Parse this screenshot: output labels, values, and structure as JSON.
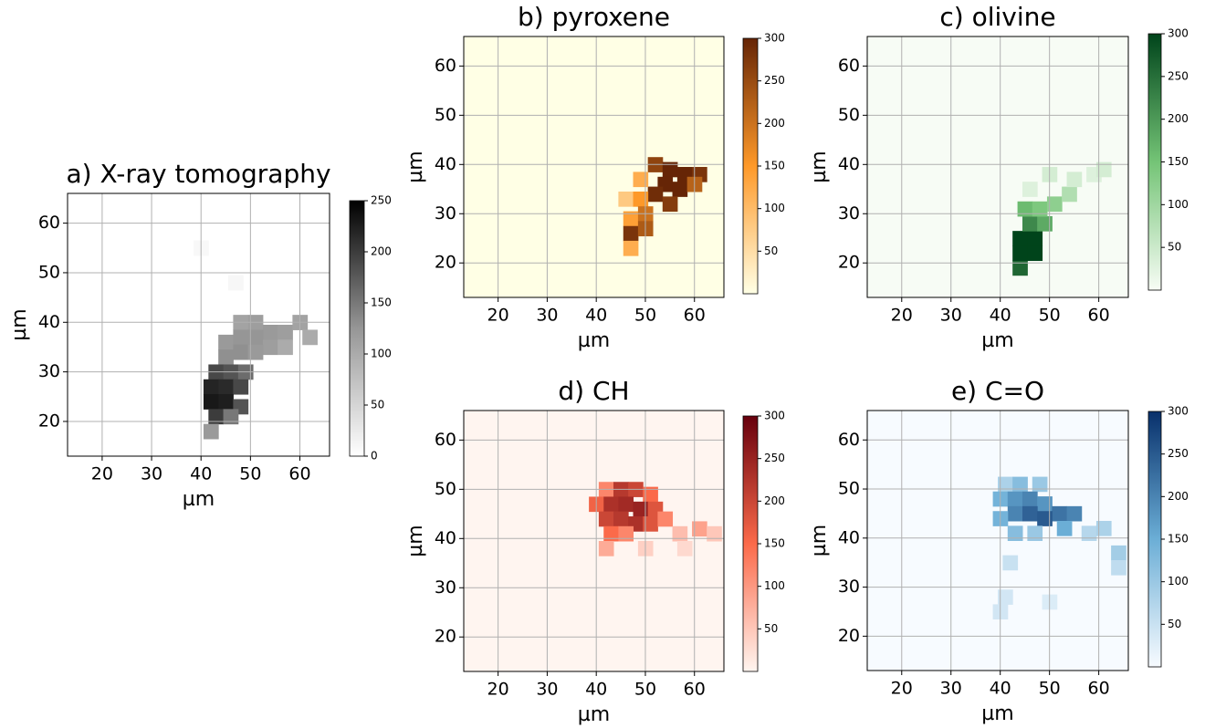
{
  "chart_data": [
    {
      "type": "heatmap",
      "title": "a) X-ray tomography",
      "xlabel": "µm",
      "ylabel": "µm",
      "xlim": [
        13,
        66
      ],
      "ylim": [
        13,
        66
      ],
      "xticks": [
        20,
        30,
        40,
        50,
        60
      ],
      "yticks": [
        20,
        30,
        40,
        50,
        60
      ],
      "grid": true,
      "clim": [
        0,
        250
      ],
      "cticks": [
        0,
        50,
        100,
        150,
        200,
        250
      ],
      "colormap": [
        "#ffffff",
        "#969696",
        "#000000"
      ],
      "x": [
        48,
        51,
        54,
        57,
        60,
        62,
        45,
        48,
        51,
        54,
        57,
        45,
        48,
        51,
        43,
        46,
        49,
        42,
        45,
        48,
        42,
        45,
        48,
        43,
        46,
        42,
        47,
        40
      ],
      "y": [
        40,
        40,
        38,
        38,
        40,
        37,
        36,
        37,
        37,
        35,
        35,
        33,
        34,
        34,
        30,
        30,
        30,
        27,
        27,
        27,
        24,
        24,
        23,
        21,
        21,
        18,
        48,
        55
      ],
      "values": [
        110,
        115,
        120,
        115,
        110,
        100,
        120,
        125,
        125,
        115,
        100,
        130,
        130,
        120,
        190,
        180,
        160,
        220,
        215,
        190,
        230,
        225,
        180,
        200,
        150,
        120,
        10,
        8
      ]
    },
    {
      "type": "heatmap",
      "title": "b) pyroxene",
      "xlabel": "µm",
      "ylabel": "µm",
      "xlim": [
        13,
        66
      ],
      "ylim": [
        13,
        66
      ],
      "xticks": [
        20,
        30,
        40,
        50,
        60
      ],
      "yticks": [
        20,
        30,
        40,
        50,
        60
      ],
      "grid": true,
      "clim": [
        0,
        300
      ],
      "cticks": [
        50,
        100,
        150,
        200,
        250,
        300
      ],
      "colormap": [
        "#ffffe5",
        "#fe9929",
        "#662506"
      ],
      "x": [
        52,
        55,
        58,
        61,
        54,
        57,
        60,
        52,
        55,
        49,
        46,
        49,
        47,
        50,
        47,
        50,
        47
      ],
      "y": [
        40,
        39,
        38,
        38,
        36,
        35,
        36,
        34,
        32,
        37,
        33,
        33,
        29,
        30,
        26,
        27,
        23
      ],
      "values": [
        260,
        300,
        300,
        280,
        300,
        300,
        220,
        290,
        270,
        120,
        80,
        150,
        140,
        200,
        280,
        230,
        120
      ]
    },
    {
      "type": "heatmap",
      "title": "c) olivine",
      "xlabel": "µm",
      "ylabel": "µm",
      "xlim": [
        13,
        66
      ],
      "ylim": [
        13,
        66
      ],
      "xticks": [
        20,
        30,
        40,
        50,
        60
      ],
      "yticks": [
        20,
        30,
        40,
        50,
        60
      ],
      "grid": true,
      "clim": [
        0,
        300
      ],
      "cticks": [
        50,
        100,
        150,
        200,
        250,
        300
      ],
      "colormap": [
        "#f7fcf5",
        "#74c476",
        "#00441b"
      ],
      "x": [
        44,
        44,
        47,
        44,
        47,
        46,
        49,
        45,
        48,
        51,
        54,
        50,
        55,
        59,
        61,
        46
      ],
      "y": [
        19,
        22,
        22,
        25,
        25,
        28,
        28,
        31,
        31,
        32,
        34,
        38,
        37,
        38,
        39,
        35
      ],
      "values": [
        260,
        300,
        300,
        300,
        300,
        220,
        180,
        160,
        140,
        120,
        80,
        40,
        40,
        30,
        40,
        30
      ]
    },
    {
      "type": "heatmap",
      "title": "d) CH",
      "xlabel": "µm",
      "ylabel": "µm",
      "xlim": [
        13,
        66
      ],
      "ylim": [
        13,
        66
      ],
      "xticks": [
        20,
        30,
        40,
        50,
        60
      ],
      "yticks": [
        20,
        30,
        40,
        50,
        60
      ],
      "grid": true,
      "clim": [
        0,
        300
      ],
      "cticks": [
        50,
        100,
        150,
        200,
        250,
        300
      ],
      "colormap": [
        "#fff5f0",
        "#fb6a4a",
        "#67000d"
      ],
      "x": [
        42,
        45,
        48,
        51,
        40,
        43,
        46,
        49,
        52,
        42,
        45,
        48,
        51,
        54,
        43,
        46,
        57,
        61,
        64,
        42,
        58,
        50
      ],
      "y": [
        50,
        50,
        50,
        49,
        47,
        47,
        47,
        46,
        46,
        44,
        44,
        43,
        43,
        44,
        41,
        41,
        41,
        42,
        41,
        38,
        38,
        38
      ],
      "values": [
        120,
        220,
        200,
        150,
        160,
        230,
        240,
        250,
        180,
        200,
        220,
        230,
        180,
        120,
        150,
        120,
        60,
        90,
        50,
        80,
        30,
        40
      ]
    },
    {
      "type": "heatmap",
      "title": "e) C=O",
      "xlabel": "µm",
      "ylabel": "µm",
      "xlim": [
        13,
        66
      ],
      "ylim": [
        13,
        66
      ],
      "xticks": [
        20,
        30,
        40,
        50,
        60
      ],
      "yticks": [
        20,
        30,
        40,
        50,
        60
      ],
      "grid": true,
      "clim": [
        0,
        300
      ],
      "cticks": [
        50,
        100,
        150,
        200,
        250,
        300
      ],
      "colormap": [
        "#f7fbff",
        "#6baed6",
        "#08306b"
      ],
      "x": [
        41,
        44,
        48,
        40,
        43,
        46,
        49,
        52,
        55,
        43,
        46,
        49,
        40,
        53,
        43,
        47,
        58,
        61,
        64,
        64,
        42,
        41,
        40,
        50
      ],
      "y": [
        51,
        51,
        51,
        48,
        48,
        48,
        47,
        45,
        45,
        45,
        45,
        44,
        44,
        42,
        41,
        41,
        41,
        42,
        37,
        34,
        35,
        28,
        25,
        27
      ],
      "values": [
        80,
        120,
        100,
        140,
        180,
        200,
        180,
        220,
        200,
        200,
        240,
        250,
        140,
        150,
        120,
        100,
        70,
        80,
        90,
        60,
        50,
        40,
        40,
        30
      ]
    }
  ]
}
